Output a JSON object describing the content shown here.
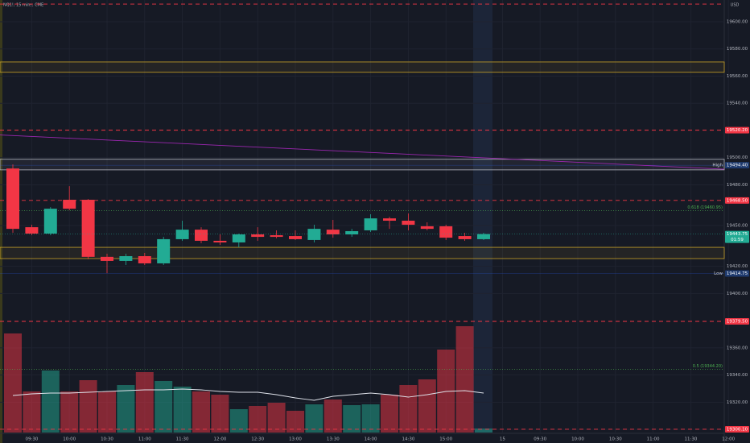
{
  "chart_data": {
    "type": "candlestick",
    "title": "NQ1!, 15 mins, CME",
    "currency": "USD",
    "categories": [
      null,
      "09:30",
      null,
      "10:00",
      null,
      "10:30",
      null,
      "11:00",
      null,
      "11:30",
      null,
      "12:00",
      null,
      "12:30",
      null,
      "13:00",
      null,
      "13:30",
      null,
      "14:00",
      null,
      "14:30",
      null,
      "15:00",
      null,
      null
    ],
    "future_time_labels": [
      "15",
      "09:30",
      "10:00",
      "10:30",
      "11:00",
      "11:30",
      "12:00"
    ],
    "open": [
      19492,
      19448.8,
      19444.1,
      19469,
      19469,
      19427,
      19424,
      19427.5,
      19422.2,
      19440,
      19447,
      19438.8,
      19437.6,
      19443.5,
      19442.9,
      19442.3,
      19439.4,
      19447,
      19443.5,
      19446.5,
      19455.3,
      19453.6,
      19449.5,
      19449.5,
      19442.3,
      19440
    ],
    "high": [
      19495,
      19450.6,
      19463.6,
      19479,
      19469.5,
      19429.3,
      19429.3,
      19429.9,
      19441.7,
      19453.6,
      19448.8,
      19443.5,
      19444.1,
      19448.8,
      19446.5,
      19446.5,
      19450.6,
      19454.2,
      19447.6,
      19458.3,
      19456.5,
      19458.9,
      19452.4,
      19450.6,
      19444.7,
      19444.7
    ],
    "low": [
      19444.7,
      19442.9,
      19442.9,
      19461.3,
      19425.2,
      19415,
      19421,
      19421,
      19421,
      19438.8,
      19437,
      19435.8,
      19434,
      19438.8,
      19440.6,
      19439.4,
      19437.6,
      19441.1,
      19441.7,
      19445.3,
      19447.6,
      19446.5,
      19446.5,
      19439.4,
      19438.8,
      19439.4
    ],
    "close": [
      19447.6,
      19444.1,
      19462.4,
      19462.4,
      19427,
      19424,
      19427.5,
      19422.2,
      19440,
      19447,
      19438.8,
      19437.6,
      19443.5,
      19441.7,
      19441.7,
      19440,
      19447.6,
      19443.5,
      19445.9,
      19455.3,
      19453.6,
      19450.6,
      19447.6,
      19441.1,
      19440,
      19443.75
    ],
    "up_color": "#22ab94",
    "down_color": "#f23645",
    "volume": [
      12300,
      5100,
      7700,
      5100,
      6500,
      5100,
      5900,
      7500,
      6400,
      5700,
      5100,
      4700,
      2900,
      3300,
      3700,
      2700,
      3500,
      4100,
      3400,
      3500,
      4700,
      5900,
      6600,
      10300,
      13200,
      500
    ],
    "volume_ma": [
      4600,
      4800,
      4900,
      4900,
      5000,
      5100,
      5200,
      5300,
      5300,
      5400,
      5300,
      5100,
      5000,
      5000,
      4700,
      4300,
      4000,
      4500,
      4700,
      4900,
      4700,
      4400,
      4700,
      5100,
      5200,
      4900
    ],
    "vlim": [
      0,
      15700
    ],
    "ylim": [
      19290,
      19616
    ],
    "yticks": [
      {
        "value": 19300,
        "label": "19300.00"
      },
      {
        "value": 19320,
        "label": "19320.00"
      },
      {
        "value": 19340,
        "label": "19340.00"
      },
      {
        "value": 19360,
        "label": "19360.00"
      },
      {
        "value": 19400,
        "label": "19400.00"
      },
      {
        "value": 19420,
        "label": "19420.00"
      },
      {
        "value": 19450,
        "label": "19450.00"
      },
      {
        "value": 19480,
        "label": "19480.00"
      },
      {
        "value": 19500,
        "label": "19500.00"
      },
      {
        "value": 19540,
        "label": "19540.00"
      },
      {
        "value": 19560,
        "label": "19560.00"
      },
      {
        "value": 19580,
        "label": "19580.00"
      },
      {
        "value": 19600,
        "label": "19600.00"
      }
    ],
    "levels": [
      {
        "value": 19613
      },
      {
        "value": 19520.2,
        "label": "19520.20"
      },
      {
        "value": 19468.5,
        "label": "19468.50"
      },
      {
        "value": 19379.5,
        "label": "19379.50"
      },
      {
        "value": 19300.1,
        "label": "19300.10"
      }
    ],
    "zones": [
      {
        "low": 19562.8,
        "high": 19570.4,
        "color": "#c9a227"
      },
      {
        "low": 19491,
        "high": 19498.8,
        "color": "#b2b5be"
      },
      {
        "low": 19425.7,
        "high": 19434,
        "color": "#c9a227"
      }
    ],
    "fib_levels": [
      {
        "value": 19460.95,
        "label": "0.618 (19460.95)"
      },
      {
        "value": 19344.2,
        "label": "0.5 (19344.20)"
      }
    ],
    "trendline": [
      19516.7,
      19490.6
    ],
    "high_marker": {
      "name": "High",
      "value": 19494.4,
      "label": "19494.40"
    },
    "low_marker": {
      "name": "Low",
      "value": 19414.75,
      "label": "19414.75"
    },
    "last_price": {
      "value": 19443.75,
      "label": "19443.75",
      "countdown": "01:59"
    }
  }
}
